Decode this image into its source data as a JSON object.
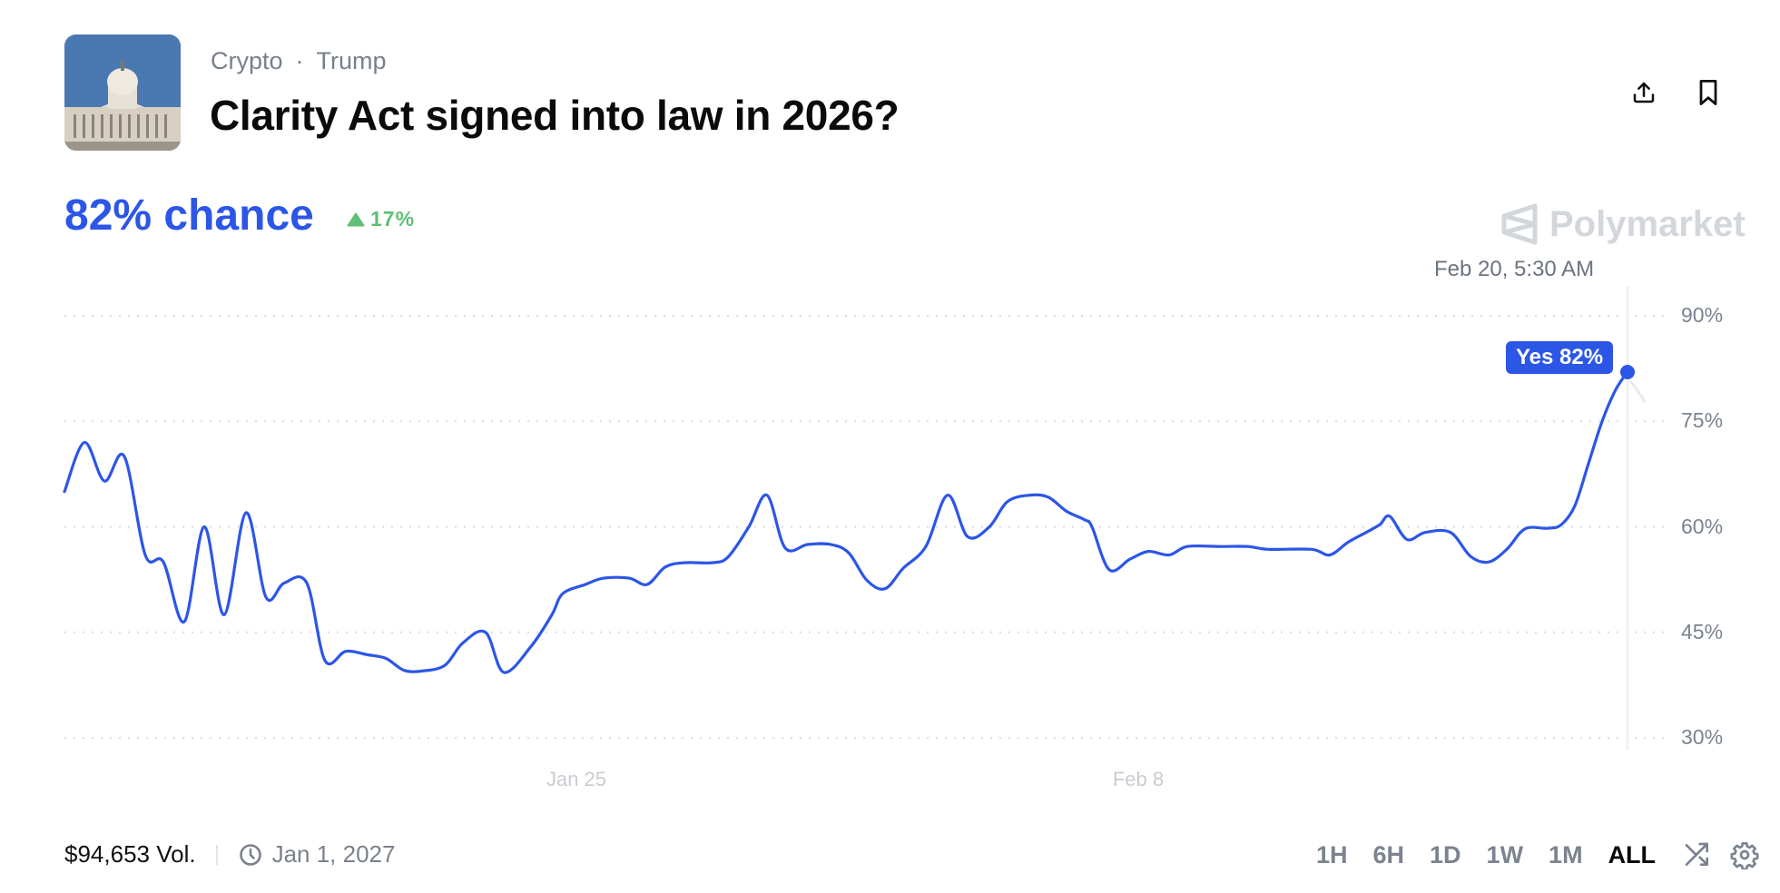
{
  "header": {
    "breadcrumb": [
      "Crypto",
      "Trump"
    ],
    "breadcrumb_separator": "·",
    "title": "Clarity Act signed into law in 2026?",
    "thumbnail_alt": "US Capitol building",
    "share_icon": "share-upload-icon",
    "bookmark_icon": "bookmark-icon"
  },
  "summary": {
    "chance_label": "82% chance",
    "delta": "17%",
    "delta_direction": "up",
    "delta_color": "#5fbf75",
    "accent_color": "#2c56e6"
  },
  "brand": {
    "name": "Polymarket"
  },
  "hover": {
    "date": "Feb 20, 5:30 AM",
    "tooltip": "Yes 82%"
  },
  "footer": {
    "volume": "$94,653 Vol.",
    "end_date": "Jan 1, 2027",
    "ranges": [
      "1H",
      "6H",
      "1D",
      "1W",
      "1M",
      "ALL"
    ],
    "active_range": "ALL"
  },
  "chart_data": {
    "type": "line",
    "title": "Clarity Act signed into law in 2026?",
    "series": [
      {
        "name": "Yes",
        "color": "#2c56e6"
      }
    ],
    "xlabel": "",
    "ylabel": "",
    "ylim": [
      25,
      95
    ],
    "yticks": [
      "90%",
      "75%",
      "60%",
      "45%",
      "30%"
    ],
    "ytick_values": [
      90,
      75,
      60,
      45,
      30
    ],
    "xticks": [
      "Jan 25",
      "Feb 8"
    ],
    "grid": "horizontal dotted",
    "last_value": 82,
    "points": [
      [
        71,
        65
      ],
      [
        93,
        72
      ],
      [
        115,
        66.5
      ],
      [
        137,
        70
      ],
      [
        160,
        56
      ],
      [
        180,
        55
      ],
      [
        203,
        46.5
      ],
      [
        225,
        60
      ],
      [
        247,
        47.5
      ],
      [
        271,
        62
      ],
      [
        293,
        50
      ],
      [
        313,
        52
      ],
      [
        338,
        52
      ],
      [
        358,
        41
      ],
      [
        381,
        42.3
      ],
      [
        405,
        41.8
      ],
      [
        425,
        41.3
      ],
      [
        445,
        39.6
      ],
      [
        465,
        39.5
      ],
      [
        490,
        40.3
      ],
      [
        510,
        43.5
      ],
      [
        535,
        45
      ],
      [
        555,
        39.3
      ],
      [
        585,
        43
      ],
      [
        608,
        47.5
      ],
      [
        620,
        50.5
      ],
      [
        645,
        51.8
      ],
      [
        665,
        52.7
      ],
      [
        693,
        52.7
      ],
      [
        713,
        51.8
      ],
      [
        733,
        54.3
      ],
      [
        755,
        54.9
      ],
      [
        785,
        54.9
      ],
      [
        802,
        55.7
      ],
      [
        825,
        60
      ],
      [
        845,
        64.5
      ],
      [
        865,
        57
      ],
      [
        890,
        57.5
      ],
      [
        915,
        57.5
      ],
      [
        935,
        56.3
      ],
      [
        955,
        52.4
      ],
      [
        975,
        51.2
      ],
      [
        995,
        54.1
      ],
      [
        1020,
        57.2
      ],
      [
        1044,
        64.5
      ],
      [
        1066,
        58.6
      ],
      [
        1090,
        60
      ],
      [
        1110,
        63.6
      ],
      [
        1135,
        64.5
      ],
      [
        1155,
        64.2
      ],
      [
        1175,
        62.2
      ],
      [
        1195,
        61
      ],
      [
        1203,
        60
      ],
      [
        1222,
        53.9
      ],
      [
        1245,
        55.4
      ],
      [
        1265,
        56.5
      ],
      [
        1288,
        56
      ],
      [
        1308,
        57.2
      ],
      [
        1345,
        57.2
      ],
      [
        1375,
        57.2
      ],
      [
        1397,
        56.8
      ],
      [
        1445,
        56.8
      ],
      [
        1465,
        56
      ],
      [
        1485,
        57.8
      ],
      [
        1505,
        59.2
      ],
      [
        1520,
        60.3
      ],
      [
        1531,
        61.5
      ],
      [
        1550,
        58.2
      ],
      [
        1570,
        59.2
      ],
      [
        1598,
        59.2
      ],
      [
        1620,
        55.8
      ],
      [
        1640,
        55
      ],
      [
        1660,
        56.8
      ],
      [
        1680,
        59.7
      ],
      [
        1705,
        59.8
      ],
      [
        1720,
        60.3
      ],
      [
        1735,
        63
      ],
      [
        1750,
        69
      ],
      [
        1765,
        75
      ],
      [
        1780,
        79.5
      ],
      [
        1793,
        82
      ]
    ]
  }
}
